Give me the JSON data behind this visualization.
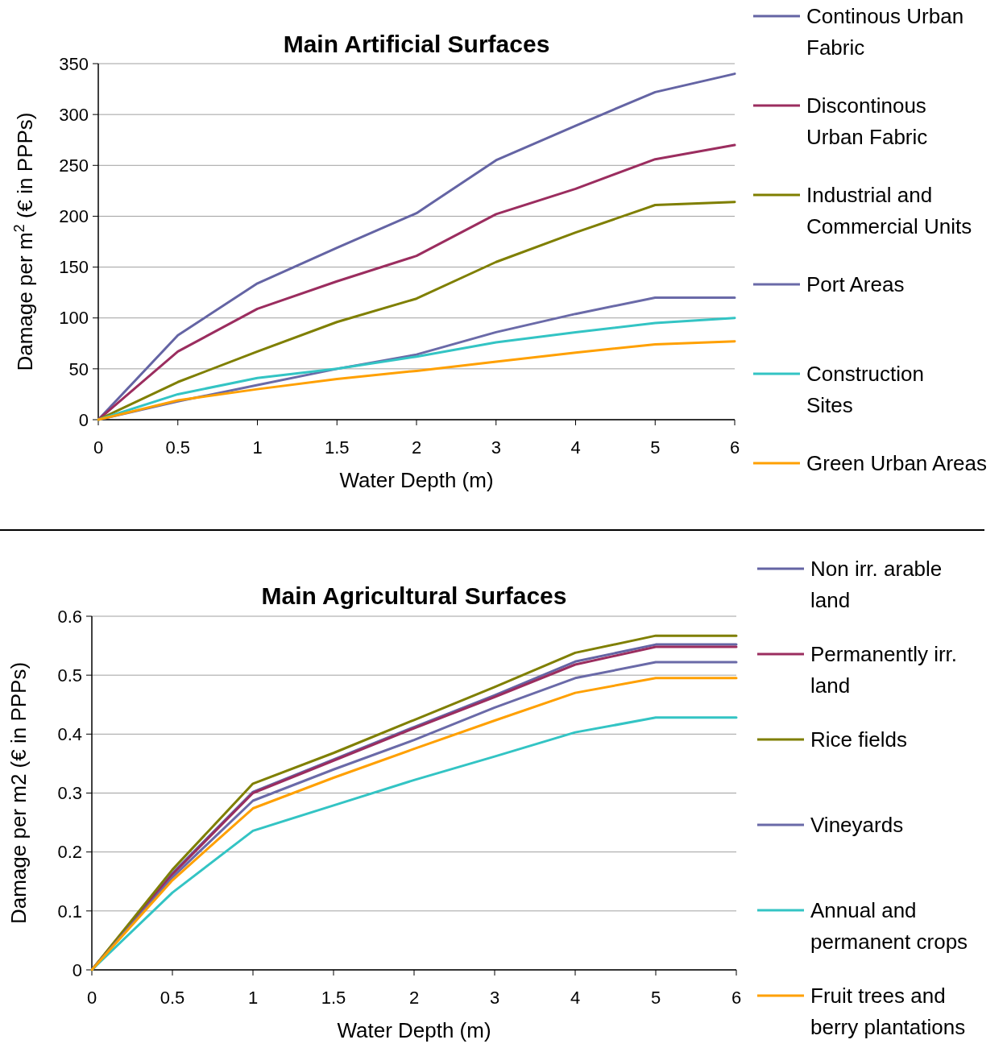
{
  "chart_data": [
    {
      "type": "line",
      "title": "Main Artificial Surfaces",
      "xlabel": "Water Depth (m)",
      "ylabel": "Damage per m$^{2}$ (€ in PPPs)",
      "categories": [
        "0",
        "0.5",
        "1",
        "1.5",
        "2",
        "3",
        "4",
        "5",
        "6"
      ],
      "ylim": [
        0,
        350
      ],
      "yticks": [
        0,
        50,
        100,
        150,
        200,
        250,
        300,
        350
      ],
      "grid": "y",
      "legend": "right",
      "marker": "none",
      "series": [
        {
          "name": "Continous Urban Fabric",
          "color": "#6464a4",
          "values": [
            0,
            83,
            134,
            169,
            203,
            255,
            289,
            322,
            340
          ]
        },
        {
          "name": "Discontinous Urban Fabric",
          "color": "#9b2d5f",
          "values": [
            0,
            67,
            109,
            136,
            161,
            202,
            227,
            256,
            270
          ]
        },
        {
          "name": "Industrial and Commercial Units",
          "color": "#7f7f00",
          "values": [
            0,
            37,
            67,
            96,
            119,
            155,
            184,
            211,
            214
          ]
        },
        {
          "name": "Port Areas",
          "color": "#6a6aa8",
          "values": [
            0,
            18,
            34,
            50,
            64,
            86,
            104,
            120,
            120
          ]
        },
        {
          "name": "Construction Sites",
          "color": "#33c4c4",
          "values": [
            0,
            25,
            41,
            50,
            62,
            76,
            86,
            95,
            100
          ]
        },
        {
          "name": "Green Urban Areas",
          "color": "#ffa000",
          "values": [
            0,
            19,
            30,
            40,
            48,
            57,
            66,
            74,
            77
          ]
        }
      ]
    },
    {
      "type": "line",
      "title": "Main Agricultural Surfaces",
      "xlabel": "Water Depth (m)",
      "ylabel": "Damage per m2  (€ in PPPs)",
      "categories": [
        "0",
        "0.5",
        "1",
        "1.5",
        "2",
        "3",
        "4",
        "5",
        "6"
      ],
      "ylim": [
        0,
        0.6
      ],
      "yticks": [
        0,
        0.1,
        0.2,
        0.3,
        0.4,
        0.5,
        0.6
      ],
      "grid": "y",
      "legend": "right",
      "marker": "none",
      "series": [
        {
          "name": "Non irr. arable land",
          "color": "#6464a4",
          "values": [
            0,
            0.164,
            0.302,
            0.357,
            0.412,
            0.466,
            0.523,
            0.552,
            0.552
          ]
        },
        {
          "name": "Permanently irr. land",
          "color": "#9b2d5f",
          "values": [
            0,
            0.162,
            0.3,
            0.355,
            0.41,
            0.463,
            0.518,
            0.548,
            0.548
          ]
        },
        {
          "name": "Rice fields",
          "color": "#7f7f00",
          "values": [
            0,
            0.17,
            0.316,
            0.368,
            0.424,
            0.48,
            0.538,
            0.567,
            0.567
          ]
        },
        {
          "name": "Vineyards",
          "color": "#6a6aa8",
          "values": [
            0,
            0.157,
            0.287,
            0.34,
            0.39,
            0.445,
            0.495,
            0.522,
            0.522
          ]
        },
        {
          "name": "Annual and permanent crops",
          "color": "#33c4c4",
          "values": [
            0,
            0.131,
            0.236,
            0.279,
            0.322,
            0.362,
            0.403,
            0.428,
            0.428
          ]
        },
        {
          "name": "Fruit trees and berry plantations",
          "color": "#ffa000",
          "values": [
            0,
            0.152,
            0.274,
            0.326,
            0.375,
            0.423,
            0.47,
            0.495,
            0.495
          ]
        }
      ]
    }
  ]
}
